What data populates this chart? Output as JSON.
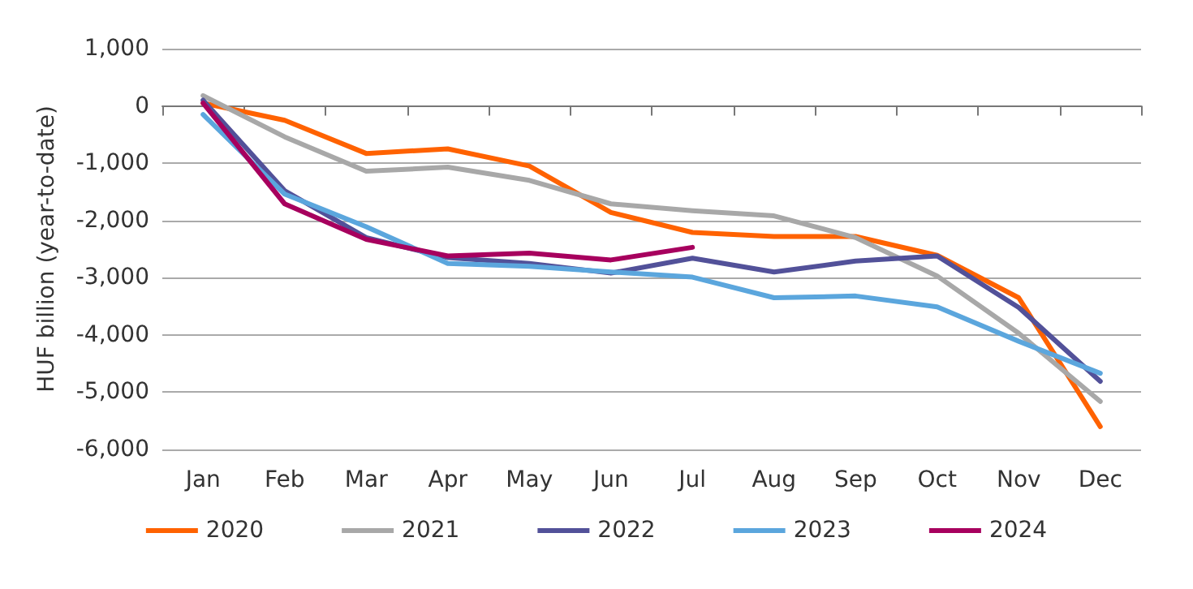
{
  "chart_data": {
    "type": "line",
    "ylabel": "HUF billion (year-to-date)",
    "categories": [
      "Jan",
      "Feb",
      "Mar",
      "Apr",
      "May",
      "Jun",
      "Jul",
      "Aug",
      "Sep",
      "Oct",
      "Nov",
      "Dec"
    ],
    "series": [
      {
        "name": "2020",
        "color": "#ff6200",
        "values": [
          50,
          -250,
          -830,
          -750,
          -1050,
          -1860,
          -2210,
          -2280,
          -2280,
          -2610,
          -3350,
          -5600
        ]
      },
      {
        "name": "2021",
        "color": "#a8a8a8",
        "values": [
          180,
          -540,
          -1140,
          -1070,
          -1300,
          -1710,
          -1830,
          -1920,
          -2300,
          -2970,
          -3970,
          -5160
        ]
      },
      {
        "name": "2022",
        "color": "#525199",
        "values": [
          100,
          -1480,
          -2300,
          -2650,
          -2750,
          -2920,
          -2660,
          -2900,
          -2710,
          -2620,
          -3520,
          -4810
        ]
      },
      {
        "name": "2023",
        "color": "#5ba6dd",
        "values": [
          -150,
          -1540,
          -2110,
          -2750,
          -2800,
          -2900,
          -2990,
          -3350,
          -3320,
          -3510,
          -4110,
          -4670
        ]
      },
      {
        "name": "2024",
        "color": "#a7005e",
        "values": [
          50,
          -1710,
          -2330,
          -2620,
          -2570,
          -2690,
          -2470,
          null,
          null,
          null,
          null,
          null
        ]
      }
    ],
    "ylim": [
      -6000,
      1000
    ],
    "yticks": [
      {
        "value": -6000,
        "label": "-6,000"
      },
      {
        "value": -5000,
        "label": "-5,000"
      },
      {
        "value": -4000,
        "label": "-4,000"
      },
      {
        "value": -3000,
        "label": "-3,000"
      },
      {
        "value": -2000,
        "label": "-2,000"
      },
      {
        "value": -1000,
        "label": "-1,000"
      },
      0,
      {
        "value": 1000,
        "label": "1,000"
      }
    ],
    "grid": "y",
    "legend": "bottom",
    "marker": "none",
    "line_style": "solid"
  }
}
